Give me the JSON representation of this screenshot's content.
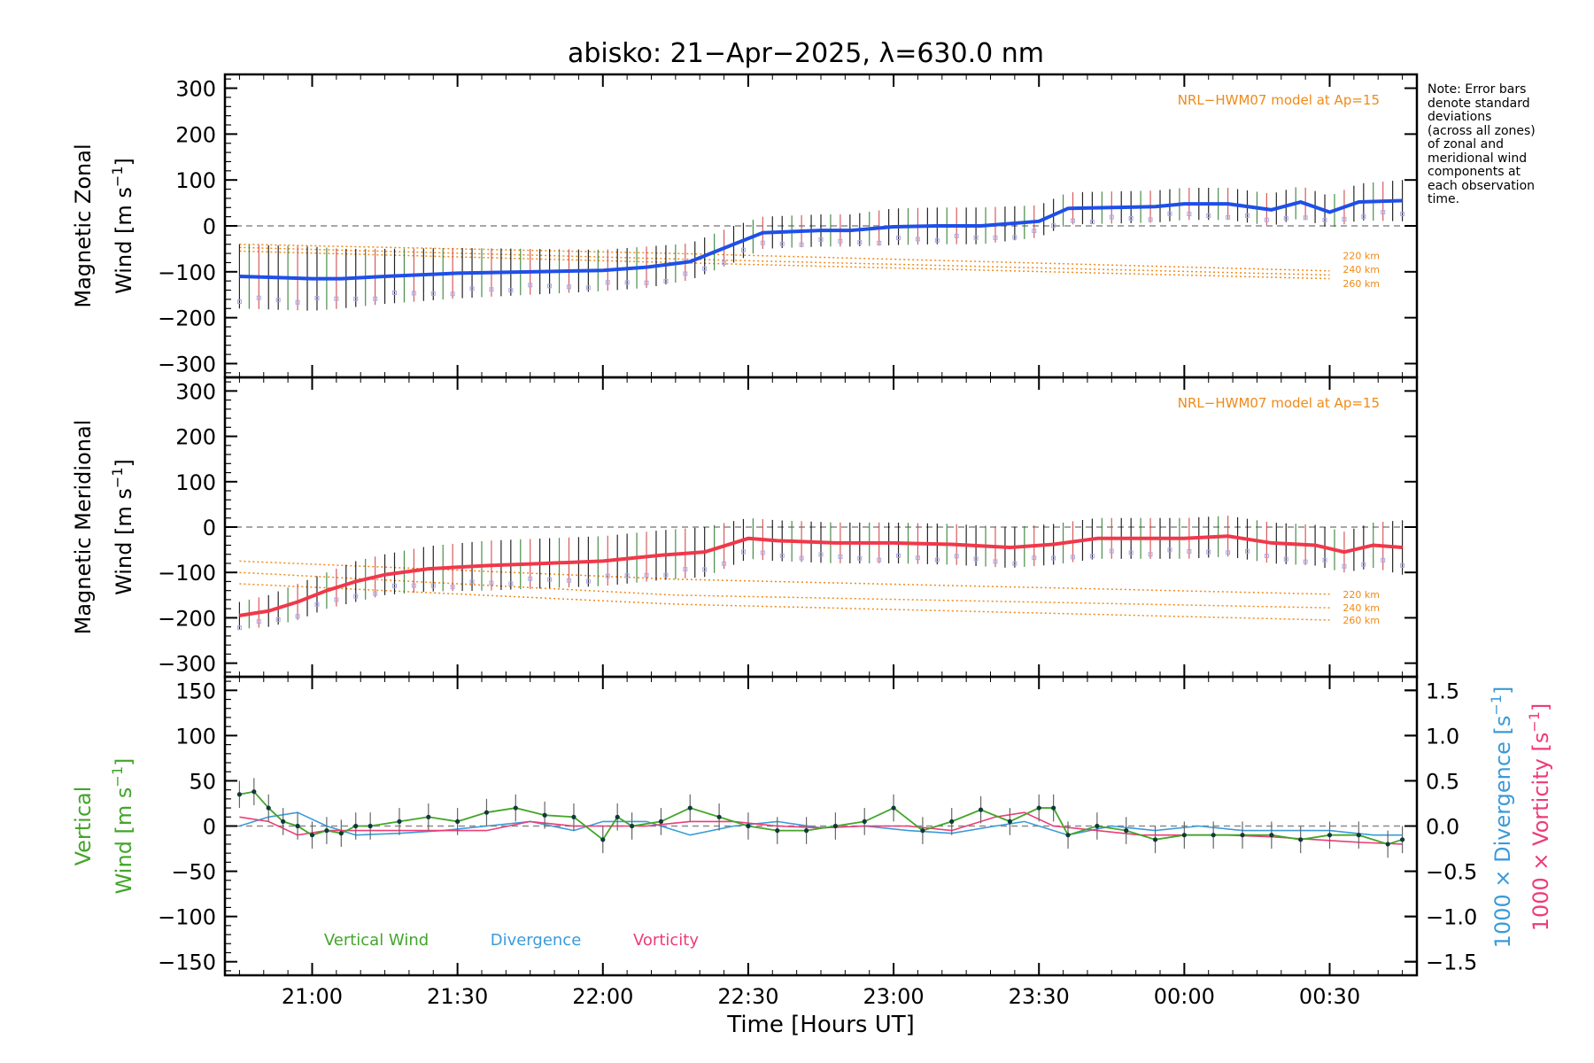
{
  "title": "abisko: 21−Apr−2025, λ=630.0 nm",
  "note_lines": [
    "Note: Error bars",
    "denote standard",
    "deviations",
    "(across all zones)",
    "of zonal and",
    "meridional wind",
    "components at",
    "each observation",
    "time."
  ],
  "colors": {
    "zonal": "#1f4fe8",
    "meridional": "#f0384a",
    "model": "#f08a18",
    "vertical": "#43a52a",
    "divergence": "#3b9ad8",
    "vorticity": "#ee3b76",
    "zone_scatter": "#a9a7e6"
  },
  "chart_data": [
    {
      "id": "zonal",
      "type": "line",
      "ylabel_line1": "Magnetic Zonal",
      "ylabel_line2": "Wind [m s",
      "ylabel_sup": "−1",
      "ylabel_close": "]",
      "ylim": [
        -330,
        330
      ],
      "yticks": [
        300,
        200,
        100,
        0,
        -100,
        -200,
        -300
      ],
      "ytick_labels": [
        "300",
        "200",
        "100",
        "0",
        "−100",
        "−200",
        "−300"
      ],
      "model_label": "NRL−HWM07 model at Ap=15",
      "altitude_labels": [
        "220 km",
        "240 km",
        "260 km"
      ],
      "altitude_label_values": [
        -65,
        -95,
        -125
      ],
      "model_series": [
        {
          "name": "220 km",
          "x": [
            20.75,
            22.25,
            24.5
          ],
          "values": [
            -40,
            -60,
            -98
          ]
        },
        {
          "name": "240 km",
          "x": [
            20.75,
            22.25,
            24.5
          ],
          "values": [
            -47,
            -72,
            -107
          ]
        },
        {
          "name": "260 km",
          "x": [
            20.75,
            22.25,
            24.5
          ],
          "values": [
            -55,
            -80,
            -115
          ]
        }
      ],
      "series": [
        {
          "name": "Magnetic Zonal Wind",
          "x": [
            20.75,
            20.9,
            21.0,
            21.1,
            21.25,
            21.5,
            21.75,
            22.0,
            22.15,
            22.3,
            22.45,
            22.55,
            22.75,
            22.85,
            23.0,
            23.15,
            23.3,
            23.5,
            23.6,
            23.75,
            23.9,
            24.0,
            24.15,
            24.3,
            24.4,
            24.5,
            24.6,
            24.75
          ],
          "values": [
            -110,
            -113,
            -115,
            -115,
            -110,
            -103,
            -100,
            -97,
            -90,
            -78,
            -40,
            -15,
            -10,
            -10,
            -2,
            0,
            0,
            10,
            38,
            40,
            42,
            48,
            48,
            35,
            52,
            30,
            52,
            55
          ],
          "errors": [
            70,
            70,
            70,
            65,
            60,
            55,
            50,
            45,
            45,
            40,
            40,
            35,
            35,
            35,
            40,
            40,
            40,
            35,
            35,
            35,
            35,
            35,
            35,
            35,
            35,
            35,
            40,
            45
          ]
        }
      ]
    },
    {
      "id": "meridional",
      "type": "line",
      "ylabel_line1": "Magnetic Meridional",
      "ylabel_line2": "Wind [m s",
      "ylabel_sup": "−1",
      "ylabel_close": "]",
      "ylim": [
        -330,
        330
      ],
      "yticks": [
        300,
        200,
        100,
        0,
        -100,
        -200,
        -300
      ],
      "ytick_labels": [
        "300",
        "200",
        "100",
        "0",
        "−100",
        "−200",
        "−300"
      ],
      "model_label": "NRL−HWM07 model at Ap=15",
      "altitude_labels": [
        "220 km",
        "240 km",
        "260 km"
      ],
      "altitude_label_values": [
        -148,
        -178,
        -205
      ],
      "model_series": [
        {
          "name": "220 km",
          "x": [
            20.75,
            22.25,
            24.5
          ],
          "values": [
            -75,
            -115,
            -148
          ]
        },
        {
          "name": "240 km",
          "x": [
            20.75,
            22.25,
            24.5
          ],
          "values": [
            -100,
            -150,
            -178
          ]
        },
        {
          "name": "260 km",
          "x": [
            20.75,
            22.25,
            24.5
          ],
          "values": [
            -125,
            -170,
            -205
          ]
        }
      ],
      "series": [
        {
          "name": "Magnetic Meridional Wind",
          "x": [
            20.75,
            20.85,
            20.95,
            21.05,
            21.15,
            21.25,
            21.4,
            21.6,
            21.8,
            22.0,
            22.2,
            22.35,
            22.5,
            22.6,
            22.8,
            23.0,
            23.2,
            23.4,
            23.55,
            23.7,
            23.9,
            24.0,
            24.15,
            24.3,
            24.45,
            24.55,
            24.65,
            24.75
          ],
          "values": [
            -195,
            -185,
            -165,
            -140,
            -120,
            -105,
            -92,
            -85,
            -80,
            -75,
            -62,
            -55,
            -25,
            -30,
            -35,
            -35,
            -38,
            -45,
            -38,
            -25,
            -25,
            -25,
            -20,
            -35,
            -40,
            -55,
            -40,
            -45
          ],
          "errors": [
            30,
            35,
            40,
            40,
            45,
            45,
            50,
            55,
            55,
            55,
            55,
            55,
            45,
            45,
            45,
            45,
            45,
            45,
            45,
            45,
            45,
            45,
            45,
            45,
            45,
            45,
            50,
            60
          ]
        }
      ]
    },
    {
      "id": "vertical",
      "type": "line",
      "ylabel_line1": "Vertical",
      "ylabel_line2": "Wind [m s",
      "ylabel_sup": "−1",
      "ylabel_close": "]",
      "ylim": [
        -165,
        165
      ],
      "yticks": [
        150,
        100,
        50,
        0,
        -50,
        -100,
        -150
      ],
      "ytick_labels": [
        "150",
        "100",
        "50",
        "0",
        "−50",
        "−100",
        "−150"
      ],
      "y2lim": [
        -1.65,
        1.65
      ],
      "y2ticks": [
        1.5,
        1.0,
        0.5,
        0.0,
        -0.5,
        -1.0,
        -1.5
      ],
      "y2tick_labels": [
        "1.5",
        "1.0",
        "0.5",
        "0.0",
        "−0.5",
        "−1.0",
        "−1.5"
      ],
      "y2label_div": "1000 × Divergence [s",
      "y2label_vort": "1000 × Vorticity [s",
      "y2label_sup": "−1",
      "y2label_close": "]",
      "legend": [
        "Vertical Wind",
        "Divergence",
        "Vorticity"
      ],
      "series": [
        {
          "name": "Vertical Wind",
          "x": [
            20.75,
            20.8,
            20.85,
            20.9,
            20.95,
            21.0,
            21.05,
            21.1,
            21.15,
            21.2,
            21.3,
            21.4,
            21.5,
            21.6,
            21.7,
            21.8,
            21.9,
            22.0,
            22.05,
            22.1,
            22.2,
            22.3,
            22.4,
            22.5,
            22.6,
            22.7,
            22.8,
            22.9,
            23.0,
            23.1,
            23.2,
            23.3,
            23.4,
            23.5,
            23.55,
            23.6,
            23.7,
            23.8,
            23.9,
            24.0,
            24.1,
            24.2,
            24.3,
            24.4,
            24.5,
            24.6,
            24.7,
            24.75
          ],
          "values": [
            35,
            38,
            20,
            5,
            0,
            -10,
            -5,
            -8,
            0,
            0,
            5,
            10,
            5,
            15,
            20,
            12,
            10,
            -15,
            10,
            0,
            5,
            20,
            10,
            0,
            -5,
            -5,
            0,
            5,
            20,
            -5,
            5,
            18,
            5,
            20,
            20,
            -10,
            0,
            -5,
            -15,
            -10,
            -10,
            -10,
            -10,
            -15,
            -10,
            -10,
            -20,
            -15
          ],
          "errors": [
            15,
            15,
            15,
            15,
            15,
            15,
            15,
            15,
            15,
            15,
            15,
            15,
            15,
            15,
            15,
            15,
            15,
            15,
            15,
            15,
            15,
            15,
            15,
            15,
            15,
            15,
            15,
            15,
            15,
            15,
            15,
            15,
            15,
            15,
            15,
            15,
            15,
            15,
            15,
            15,
            15,
            15,
            15,
            15,
            15,
            15,
            15,
            15
          ]
        },
        {
          "name": "Divergence",
          "x": [
            20.75,
            20.85,
            20.95,
            21.05,
            21.15,
            21.3,
            21.45,
            21.6,
            21.75,
            21.9,
            22.0,
            22.15,
            22.3,
            22.45,
            22.6,
            22.75,
            22.9,
            23.05,
            23.2,
            23.35,
            23.45,
            23.6,
            23.75,
            23.9,
            24.05,
            24.2,
            24.35,
            24.5,
            24.65,
            24.75
          ],
          "values": [
            0.0,
            0.1,
            0.15,
            0.0,
            -0.1,
            -0.08,
            -0.05,
            0.0,
            0.05,
            -0.05,
            0.05,
            0.05,
            -0.1,
            0.0,
            0.05,
            -0.02,
            0.0,
            -0.05,
            -0.08,
            0.0,
            0.05,
            -0.1,
            0.0,
            -0.05,
            0.0,
            -0.05,
            -0.05,
            -0.05,
            -0.1,
            -0.1
          ]
        },
        {
          "name": "Vorticity",
          "x": [
            20.75,
            20.85,
            20.95,
            21.05,
            21.15,
            21.3,
            21.45,
            21.6,
            21.75,
            21.9,
            22.0,
            22.15,
            22.3,
            22.45,
            22.6,
            22.75,
            22.9,
            23.05,
            23.2,
            23.35,
            23.45,
            23.55,
            23.7,
            23.85,
            24.0,
            24.15,
            24.3,
            24.45,
            24.6,
            24.75
          ],
          "values": [
            0.1,
            0.05,
            -0.1,
            -0.05,
            -0.05,
            -0.05,
            -0.05,
            -0.05,
            0.05,
            0.0,
            0.0,
            0.0,
            0.05,
            0.05,
            0.0,
            -0.02,
            0.0,
            0.0,
            -0.05,
            0.1,
            0.15,
            0.0,
            -0.05,
            -0.1,
            -0.1,
            -0.1,
            -0.12,
            -0.15,
            -0.18,
            -0.2
          ]
        }
      ]
    }
  ],
  "xaxis": {
    "xlim": [
      20.7,
      24.8
    ],
    "ticks": [
      21.0,
      21.5,
      22.0,
      22.5,
      23.0,
      23.5,
      24.0,
      24.5
    ],
    "tick_labels": [
      "21:00",
      "21:30",
      "22:00",
      "22:30",
      "23:00",
      "23:30",
      "00:00",
      "00:30"
    ],
    "label": "Time [Hours UT]"
  }
}
